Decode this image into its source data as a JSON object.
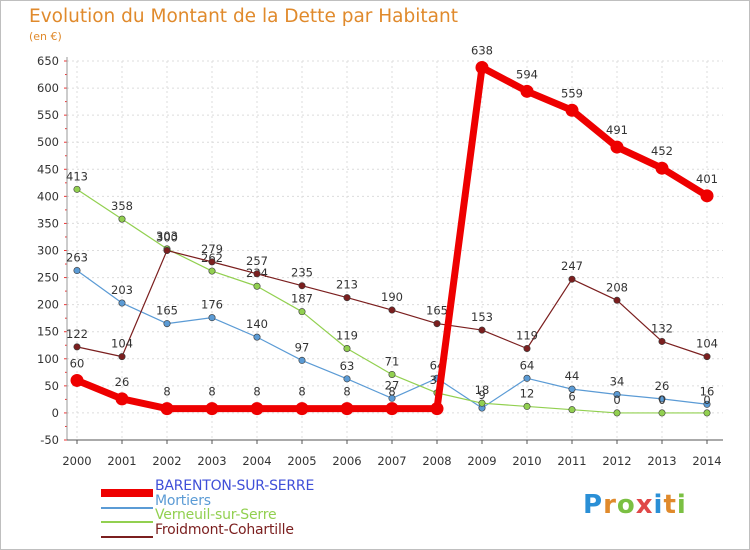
{
  "title": "Evolution du Montant de la Dette par Habitant",
  "unit_label": "(en €)",
  "logo": {
    "letters": [
      "P",
      "r",
      "o",
      "x",
      "i",
      "t",
      "i"
    ],
    "colors": [
      "#2a8fd6",
      "#e08a2c",
      "#7bc043",
      "#e04848",
      "#2a8fd6",
      "#e08a2c",
      "#7bc043"
    ]
  },
  "chart_data": {
    "type": "line",
    "title": "Evolution du Montant de la Dette par Habitant",
    "ylabel": "(en €)",
    "xlabel": "",
    "x": [
      "2000",
      "2001",
      "2002",
      "2003",
      "2004",
      "2005",
      "2006",
      "2007",
      "2008",
      "2009",
      "2010",
      "2011",
      "2012",
      "2013",
      "2014"
    ],
    "ylim": [
      -50,
      650
    ],
    "yticks": [
      "-50",
      "0",
      "50",
      "100",
      "150",
      "200",
      "250",
      "300",
      "350",
      "400",
      "450",
      "500",
      "550",
      "600",
      "650"
    ],
    "grid": true,
    "legend_position": "bottom-left",
    "series": [
      {
        "name": "BARENTON-SUR-SERRE",
        "color": "#ee0000",
        "values": [
          60,
          26,
          8,
          8,
          8,
          8,
          8,
          8,
          8,
          638,
          594,
          559,
          491,
          452,
          401
        ],
        "labels": [
          "60",
          "26",
          "8",
          "8",
          "8",
          "8",
          "8",
          "8",
          "",
          "638",
          "594",
          "559",
          "491",
          "452",
          "401"
        ]
      },
      {
        "name": "Mortiers",
        "color": "#5b9bd5",
        "values": [
          263,
          203,
          165,
          176,
          140,
          97,
          63,
          27,
          64,
          9,
          64,
          44,
          34,
          26,
          16
        ],
        "labels": [
          "263",
          "203",
          "165",
          "176",
          "140",
          "97",
          "63",
          "27",
          "64",
          "9",
          "64",
          "44",
          "34",
          "26",
          "16"
        ]
      },
      {
        "name": "Verneuil-sur-Serre",
        "color": "#92d050",
        "values": [
          413,
          358,
          303,
          262,
          234,
          187,
          119,
          71,
          37,
          18,
          12,
          6,
          0,
          0,
          0
        ],
        "labels": [
          "413",
          "358",
          "303",
          "262",
          "234",
          "187",
          "119",
          "71",
          "37",
          "18",
          "12",
          "6",
          "0",
          "0",
          "0"
        ]
      },
      {
        "name": "Froidmont-Cohartille",
        "color": "#7b1f1f",
        "values": [
          122,
          104,
          300,
          279,
          257,
          235,
          213,
          190,
          165,
          153,
          119,
          247,
          208,
          132,
          104
        ],
        "labels": [
          "122",
          "104",
          "300",
          "279",
          "257",
          "235",
          "213",
          "190",
          "165",
          "153",
          "119",
          "247",
          "208",
          "132",
          "104"
        ]
      }
    ]
  }
}
